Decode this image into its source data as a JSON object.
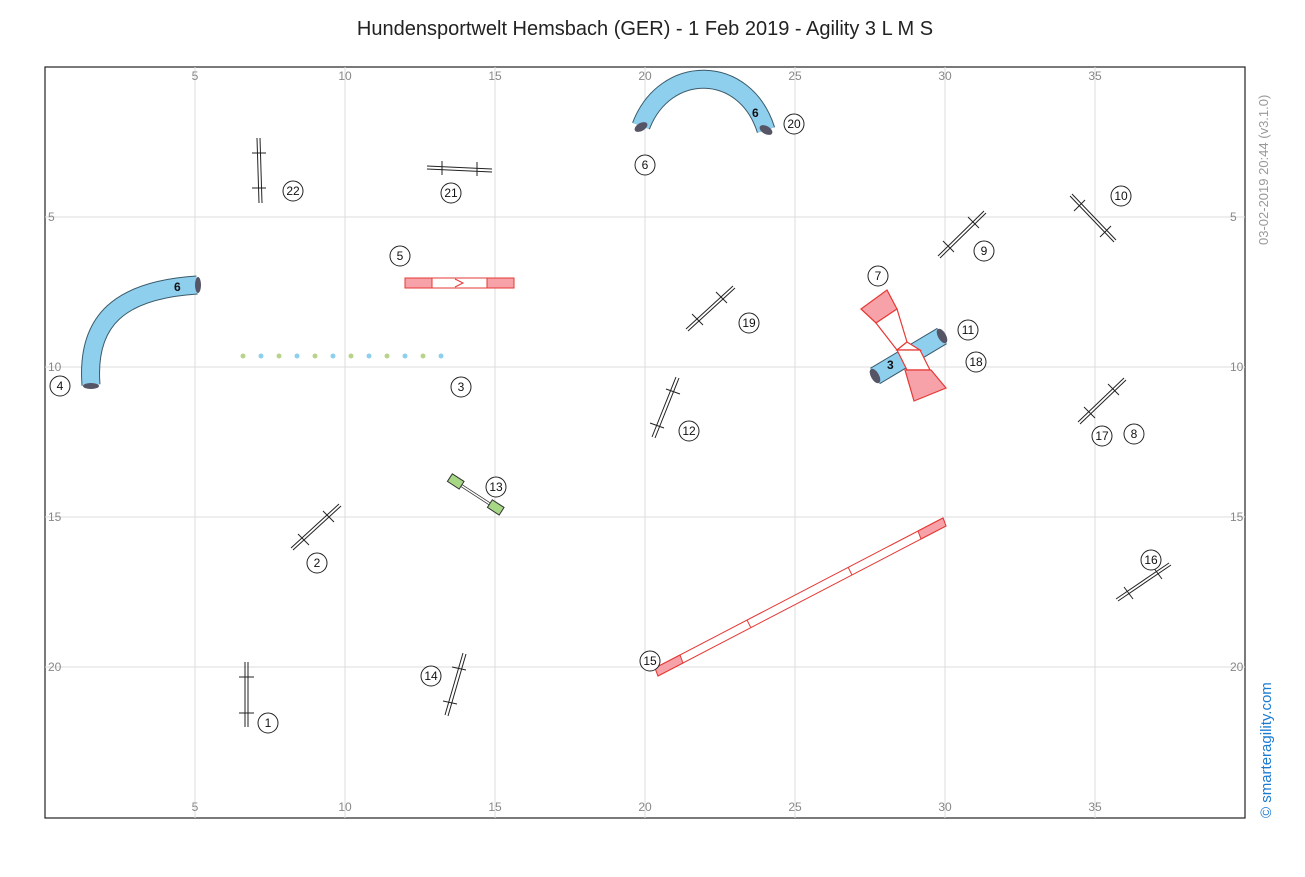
{
  "title": "Hundensportwelt Hemsbach (GER) - 1 Feb 2019 - Agility 3 L M S",
  "timestamp": "03-02-2019 20:44  (v3.1.0)",
  "brand": "© smarteragility.com",
  "grid": {
    "x_ticks": [
      5,
      10,
      15,
      20,
      25,
      30,
      35
    ],
    "y_ticks": [
      5,
      10,
      15,
      20
    ]
  },
  "tunnel_labels": [
    "6",
    "6",
    "3"
  ],
  "numbers": [
    "1",
    "2",
    "3",
    "4",
    "5",
    "6",
    "7",
    "8",
    "9",
    "10",
    "11",
    "12",
    "13",
    "14",
    "15",
    "16",
    "17",
    "18",
    "19",
    "20",
    "21",
    "22"
  ],
  "colors": {
    "tunnel": "#8ecfee",
    "contact": "#f7a1a8",
    "line": "#e53935",
    "seesaw": "#a6d785",
    "brand": "#1a7bd1"
  }
}
